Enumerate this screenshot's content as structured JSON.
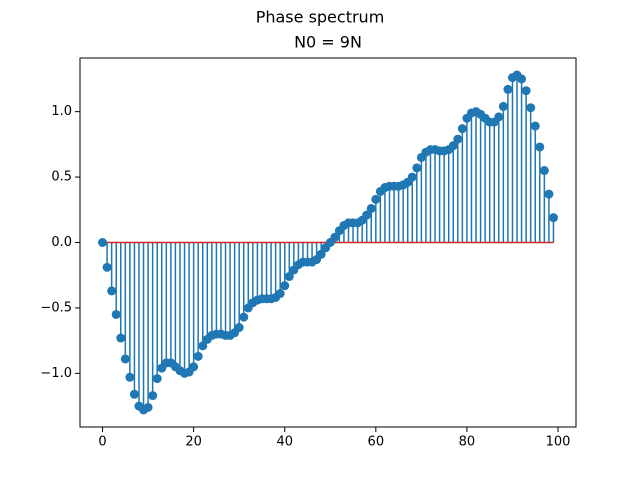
{
  "chart_data": {
    "type": "stem",
    "title": "Phase spectrum",
    "subtitle": "N0 = 9N",
    "x": [
      0,
      1,
      2,
      3,
      4,
      5,
      6,
      7,
      8,
      9,
      10,
      11,
      12,
      13,
      14,
      15,
      16,
      17,
      18,
      19,
      20,
      21,
      22,
      23,
      24,
      25,
      26,
      27,
      28,
      29,
      30,
      31,
      32,
      33,
      34,
      35,
      36,
      37,
      38,
      39,
      40,
      41,
      42,
      43,
      44,
      45,
      46,
      47,
      48,
      49,
      50,
      51,
      52,
      53,
      54,
      55,
      56,
      57,
      58,
      59,
      60,
      61,
      62,
      63,
      64,
      65,
      66,
      67,
      68,
      69,
      70,
      71,
      72,
      73,
      74,
      75,
      76,
      77,
      78,
      79,
      80,
      81,
      82,
      83,
      84,
      85,
      86,
      87,
      88,
      89,
      90,
      91,
      92,
      93,
      94,
      95,
      96,
      97,
      98,
      99
    ],
    "values": [
      0,
      -0.19,
      -0.37,
      -0.55,
      -0.73,
      -0.89,
      -1.03,
      -1.16,
      -1.25,
      -1.28,
      -1.26,
      -1.17,
      -1.04,
      -0.96,
      -0.92,
      -0.92,
      -0.95,
      -0.98,
      -1.0,
      -0.99,
      -0.95,
      -0.87,
      -0.79,
      -0.74,
      -0.71,
      -0.7,
      -0.7,
      -0.71,
      -0.71,
      -0.69,
      -0.65,
      -0.57,
      -0.5,
      -0.46,
      -0.44,
      -0.43,
      -0.43,
      -0.43,
      -0.42,
      -0.39,
      -0.33,
      -0.26,
      -0.21,
      -0.17,
      -0.15,
      -0.15,
      -0.15,
      -0.13,
      -0.09,
      -0.04,
      0,
      0.04,
      0.09,
      0.13,
      0.15,
      0.15,
      0.15,
      0.17,
      0.21,
      0.26,
      0.33,
      0.39,
      0.42,
      0.43,
      0.43,
      0.43,
      0.44,
      0.46,
      0.5,
      0.57,
      0.65,
      0.69,
      0.71,
      0.71,
      0.7,
      0.7,
      0.71,
      0.74,
      0.79,
      0.87,
      0.95,
      0.99,
      1.0,
      0.98,
      0.95,
      0.92,
      0.92,
      0.96,
      1.04,
      1.17,
      1.26,
      1.28,
      1.25,
      1.16,
      1.03,
      0.89,
      0.73,
      0.55,
      0.37,
      0.19
    ],
    "color": "#1f77b4",
    "baseline_color": "#d62728",
    "xlim": [
      -4.95,
      103.95
    ],
    "xticks": [
      0,
      20,
      40,
      60,
      80,
      100
    ],
    "ylim": [
      -1.41,
      1.41
    ],
    "yticks": [
      {
        "value": -1,
        "label": "−1.0"
      },
      {
        "value": -0.5,
        "label": "−0.5"
      },
      {
        "value": 0,
        "label": "0.0"
      },
      {
        "value": 0.5,
        "label": "0.5"
      },
      {
        "value": 1,
        "label": "1.0"
      }
    ],
    "grid": false
  }
}
